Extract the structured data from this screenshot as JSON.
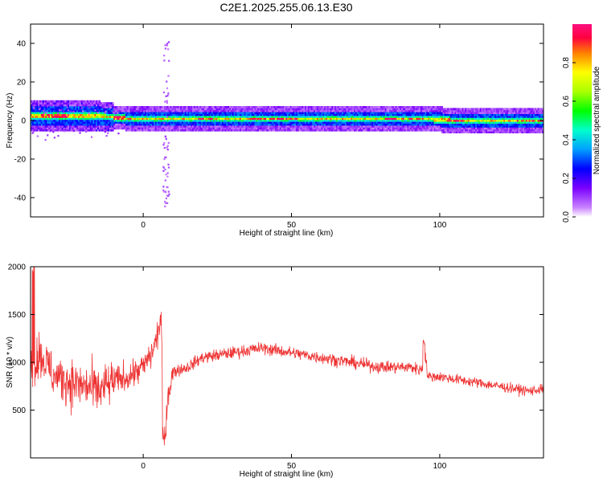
{
  "title": "C2E1.2025.255.06.13.E30",
  "chart_data": [
    {
      "type": "heatmap",
      "xlabel": "Height of straight line (km)",
      "ylabel": "Frequency (Hz)",
      "xlim": [
        -38,
        135
      ],
      "ylim": [
        -50,
        50
      ],
      "xticks": [
        0,
        50,
        100
      ],
      "yticks": [
        -40,
        -20,
        0,
        20,
        40
      ],
      "colorbar": {
        "label": "Normalized spectral amplitude",
        "range": [
          0.0,
          1.0
        ],
        "ticks": [
          0.0,
          0.2,
          0.4,
          0.6,
          0.8
        ],
        "tick_labels": [
          "0.0",
          "0.2",
          "0.4",
          "0.6",
          "0.8"
        ]
      },
      "ridge": {
        "description_points_x": [
          -38,
          -15,
          -5,
          0,
          10,
          30,
          50,
          70,
          90,
          96,
          105,
          120,
          135
        ],
        "center_freq_hz": [
          2.5,
          2.5,
          1.0,
          1.0,
          1.0,
          1.0,
          1.0,
          1.0,
          1.0,
          1.0,
          0.0,
          0.0,
          0.0
        ]
      }
    },
    {
      "type": "line",
      "xlabel": "Height of straight line (km)",
      "ylabel": "SNR (10 * v/v)",
      "xlim": [
        -38,
        135
      ],
      "ylim": [
        0,
        2000
      ],
      "xticks": [
        0,
        50,
        100
      ],
      "yticks": [
        500,
        1000,
        1500,
        2000
      ],
      "series": [
        {
          "color": "#ee3333",
          "x": [
            -38,
            -35,
            -30,
            -25,
            -20,
            -15,
            -10,
            -5,
            0,
            3,
            5,
            6,
            7,
            8,
            10,
            15,
            20,
            30,
            40,
            50,
            60,
            70,
            80,
            90,
            94,
            95,
            96,
            100,
            110,
            120,
            130,
            135
          ],
          "y": [
            900,
            1100,
            850,
            800,
            750,
            700,
            800,
            850,
            950,
            1100,
            1300,
            1500,
            200,
            600,
            900,
            950,
            1050,
            1100,
            1150,
            1100,
            1050,
            1000,
            950,
            950,
            920,
            1100,
            850,
            850,
            800,
            750,
            700,
            720
          ]
        }
      ]
    }
  ],
  "colors": {
    "line": "#ee3333",
    "ridge_hot": "#ff2244"
  }
}
